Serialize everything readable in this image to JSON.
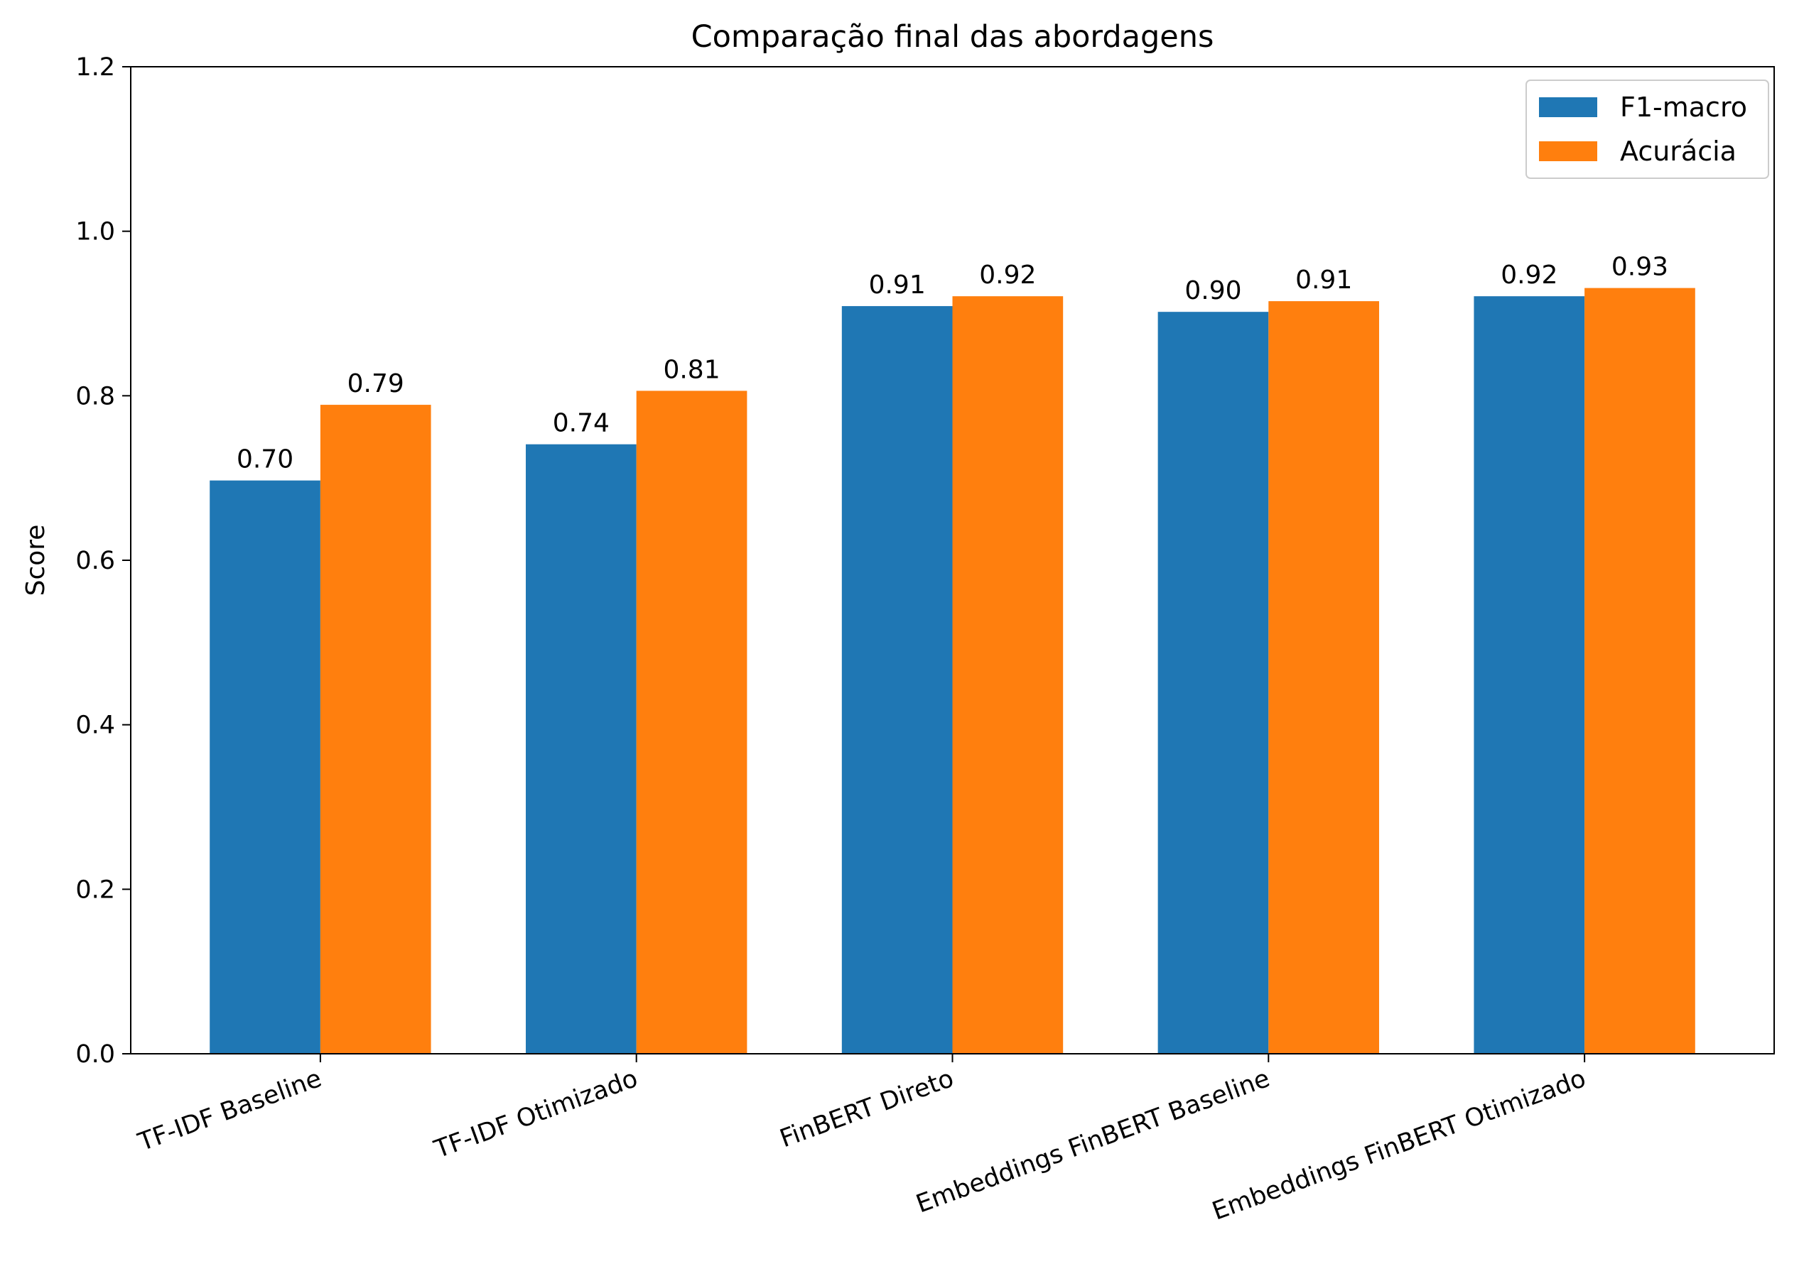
{
  "chart_data": {
    "type": "bar",
    "title": "Comparação final das abordagens",
    "xlabel": "",
    "ylabel": "Score",
    "categories": [
      "TF-IDF Baseline",
      "TF-IDF Otimizado",
      "FinBERT Direto",
      "Embeddings FinBERT Baseline",
      "Embeddings FinBERT Otimizado"
    ],
    "series": [
      {
        "name": "F1-macro",
        "color": "#1f77b4",
        "values": [
          0.697,
          0.741,
          0.909,
          0.902,
          0.921
        ],
        "labels": [
          "0.70",
          "0.74",
          "0.91",
          "0.90",
          "0.92"
        ]
      },
      {
        "name": "Acurácia",
        "color": "#ff7f0e",
        "values": [
          0.789,
          0.806,
          0.921,
          0.915,
          0.931
        ],
        "labels": [
          "0.79",
          "0.81",
          "0.92",
          "0.91",
          "0.93"
        ]
      }
    ],
    "ylim": [
      0,
      1.2
    ],
    "yticks": [
      "0.0",
      "0.2",
      "0.4",
      "0.6",
      "0.8",
      "1.0",
      "1.2"
    ],
    "grid": false,
    "legend_position": "top-right"
  }
}
